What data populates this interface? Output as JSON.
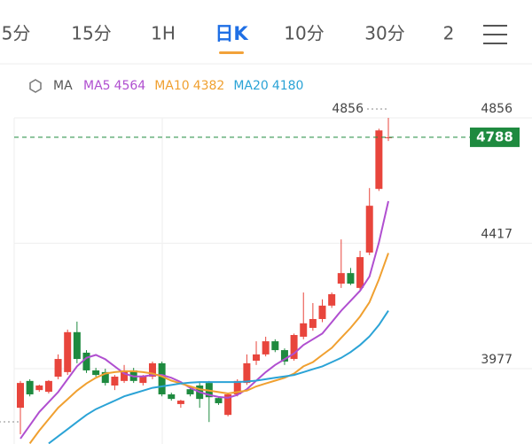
{
  "tabs": [
    "5分",
    "15分",
    "1H",
    "日K",
    "10分",
    "30分",
    "2"
  ],
  "active_tab": 3,
  "chart_data": {
    "type": "candlestick",
    "legend_title": "MA",
    "up_color": "#e8453c",
    "down_color": "#1e8a3f",
    "open": [
      3840,
      3934,
      3902,
      3896,
      3949,
      3965,
      4105,
      4033,
      3971,
      3965,
      3918,
      3934,
      3971,
      3927,
      3949,
      3996,
      3887,
      3853,
      3905,
      3918,
      3927,
      3874,
      3815,
      3887,
      3927,
      4005,
      4027,
      4073,
      4042,
      4011,
      4089,
      4120,
      4151,
      4198,
      4275,
      4312,
      4260,
      4384,
      4607,
      4785
    ],
    "high": [
      3934,
      3940,
      3921,
      3937,
      4027,
      4114,
      4142,
      4042,
      3980,
      3977,
      3955,
      3990,
      3980,
      3955,
      4002,
      4002,
      3893,
      3868,
      3915,
      3927,
      3934,
      3880,
      3893,
      3940,
      4027,
      4073,
      4089,
      4080,
      4048,
      4100,
      4244,
      4207,
      4220,
      4244,
      4430,
      4330,
      4390,
      4610,
      4818,
      4856
    ],
    "low": [
      3747,
      3880,
      3896,
      3890,
      3940,
      3955,
      3996,
      3962,
      3949,
      3918,
      3902,
      3927,
      3927,
      3918,
      3940,
      3880,
      3865,
      3840,
      3880,
      3840,
      3790,
      3850,
      3810,
      3880,
      3920,
      3990,
      4020,
      4035,
      3990,
      4005,
      4080,
      4110,
      4140,
      4190,
      4260,
      4270,
      4250,
      4375,
      4600,
      4775
    ],
    "close": [
      3927,
      3887,
      3918,
      3934,
      4011,
      4105,
      4011,
      3971,
      3955,
      3927,
      3949,
      3971,
      3934,
      3952,
      3996,
      3887,
      3871,
      3865,
      3887,
      3871,
      3877,
      3856,
      3887,
      3934,
      3996,
      4027,
      4073,
      4042,
      4002,
      4095,
      4136,
      4151,
      4198,
      4238,
      4312,
      4275,
      4368,
      4548,
      4812,
      4788
    ],
    "series": [
      {
        "name": "MA5",
        "color": "#b04fd0",
        "values": [
          3732,
          3778,
          3825,
          3860,
          3895,
          3940,
          3985,
          4015,
          4025,
          4010,
          3985,
          3960,
          3950,
          3950,
          3955,
          3955,
          3945,
          3930,
          3910,
          3895,
          3885,
          3878,
          3875,
          3885,
          3905,
          3935,
          3965,
          3990,
          4010,
          4030,
          4060,
          4080,
          4100,
          4140,
          4180,
          4215,
          4250,
          4300,
          4420,
          4564
        ]
      },
      {
        "name": "MA10",
        "color": "#f0a030",
        "values": [
          null,
          3715,
          3760,
          3800,
          3840,
          3870,
          3900,
          3925,
          3945,
          3960,
          3965,
          3968,
          3968,
          3965,
          3960,
          3950,
          3935,
          3925,
          3915,
          3905,
          3900,
          3895,
          3890,
          3895,
          3900,
          3915,
          3925,
          3935,
          3945,
          3960,
          3985,
          4000,
          4025,
          4050,
          4085,
          4120,
          4160,
          4210,
          4290,
          4382
        ]
      },
      {
        "name": "MA20",
        "color": "#2ba3d6",
        "values": [
          null,
          null,
          null,
          3715,
          3740,
          3765,
          3790,
          3815,
          3835,
          3850,
          3865,
          3880,
          3890,
          3900,
          3910,
          3915,
          3920,
          3925,
          3928,
          3930,
          3930,
          3930,
          3930,
          3930,
          3932,
          3935,
          3940,
          3945,
          3950,
          3955,
          3965,
          3975,
          3985,
          4000,
          4015,
          4035,
          4060,
          4090,
          4130,
          4180
        ]
      }
    ],
    "ylim": [
      3713,
      4856
    ],
    "yticks": [
      4856,
      4417,
      3977
    ],
    "grid": true
  }
}
